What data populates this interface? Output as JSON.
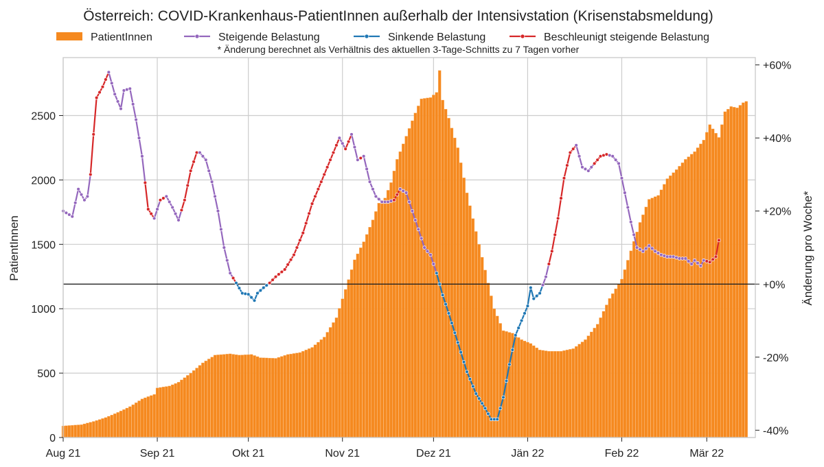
{
  "chart_data": {
    "type": "bar",
    "title": "Österreich: COVID-Krankenhaus-PatientInnen außerhalb der Intensivstation (Krisenstabsmeldung)",
    "note": "* Änderung berechnet als Verhältnis des aktuellen 3-Tage-Schnitts zu 7 Tagen vorher",
    "ylabel_left": "PatientInnen",
    "ylabel_right": "Änderung pro Woche*",
    "ylim_left": [
      0,
      2950
    ],
    "ylim_right": [
      -42,
      62
    ],
    "yticks_left": [
      {
        "value": 0,
        "label": "0"
      },
      {
        "value": 500,
        "label": "500"
      },
      {
        "value": 1000,
        "label": "1000"
      },
      {
        "value": 1500,
        "label": "1500"
      },
      {
        "value": 2000,
        "label": "2000"
      },
      {
        "value": 2500,
        "label": "2500"
      }
    ],
    "yticks_right": [
      {
        "value": -40,
        "label": "-40%"
      },
      {
        "value": -20,
        "label": "-20%"
      },
      {
        "value": 0,
        "label": "+0%"
      },
      {
        "value": 20,
        "label": "+20%"
      },
      {
        "value": 40,
        "label": "+40%"
      },
      {
        "value": 60,
        "label": "+60%"
      }
    ],
    "xticks": [
      {
        "day": 0,
        "label": "Aug 21"
      },
      {
        "day": 31,
        "label": "Sep 21"
      },
      {
        "day": 61,
        "label": "Okt 21"
      },
      {
        "day": 92,
        "label": "Nov 21"
      },
      {
        "day": 122,
        "label": "Dez 21"
      },
      {
        "day": 153,
        "label": "Jän 22"
      },
      {
        "day": 184,
        "label": "Feb 22"
      },
      {
        "day": 212,
        "label": "Mär 22"
      }
    ],
    "x_range_days": [
      0,
      228
    ],
    "grid": true,
    "legend_placement": "top",
    "legend": [
      {
        "key": "bars",
        "label": "PatientInnen",
        "color": "#f5891f",
        "kind": "patch"
      },
      {
        "key": "rising",
        "label": "Steigende Belastung",
        "color": "#9467bd",
        "kind": "line"
      },
      {
        "key": "falling",
        "label": "Sinkende Belastung",
        "color": "#1f77b4",
        "kind": "line"
      },
      {
        "key": "accel",
        "label": "Beschleunigt steigende Belastung",
        "color": "#d62728",
        "kind": "line"
      }
    ],
    "bar_color": "#f5891f",
    "series_colors": {
      "rising": "#9467bd",
      "falling": "#1f77b4",
      "accel": "#d62728"
    },
    "patients_anchors": [
      [
        0,
        90
      ],
      [
        6,
        100
      ],
      [
        10,
        125
      ],
      [
        14,
        155
      ],
      [
        18,
        195
      ],
      [
        22,
        240
      ],
      [
        26,
        300
      ],
      [
        30,
        335
      ],
      [
        31,
        385
      ],
      [
        35,
        400
      ],
      [
        38,
        430
      ],
      [
        42,
        500
      ],
      [
        46,
        580
      ],
      [
        50,
        640
      ],
      [
        55,
        650
      ],
      [
        58,
        640
      ],
      [
        62,
        645
      ],
      [
        65,
        620
      ],
      [
        70,
        615
      ],
      [
        74,
        645
      ],
      [
        78,
        660
      ],
      [
        82,
        700
      ],
      [
        86,
        780
      ],
      [
        90,
        930
      ],
      [
        93,
        1150
      ],
      [
        96,
        1380
      ],
      [
        99,
        1520
      ],
      [
        102,
        1690
      ],
      [
        104,
        1820
      ],
      [
        106,
        1860
      ],
      [
        108,
        1980
      ],
      [
        110,
        2160
      ],
      [
        112,
        2280
      ],
      [
        114,
        2400
      ],
      [
        116,
        2520
      ],
      [
        118,
        2630
      ],
      [
        121,
        2640
      ],
      [
        123,
        2680
      ],
      [
        124,
        2850
      ],
      [
        125,
        2620
      ],
      [
        127,
        2480
      ],
      [
        130,
        2250
      ],
      [
        133,
        1900
      ],
      [
        136,
        1600
      ],
      [
        139,
        1300
      ],
      [
        142,
        1000
      ],
      [
        145,
        830
      ],
      [
        148,
        810
      ],
      [
        151,
        760
      ],
      [
        154,
        730
      ],
      [
        157,
        680
      ],
      [
        160,
        670
      ],
      [
        164,
        670
      ],
      [
        168,
        690
      ],
      [
        172,
        760
      ],
      [
        176,
        880
      ],
      [
        180,
        1080
      ],
      [
        184,
        1230
      ],
      [
        187,
        1450
      ],
      [
        190,
        1670
      ],
      [
        193,
        1850
      ],
      [
        196,
        1880
      ],
      [
        199,
        2010
      ],
      [
        202,
        2080
      ],
      [
        205,
        2160
      ],
      [
        208,
        2220
      ],
      [
        211,
        2310
      ],
      [
        213,
        2430
      ],
      [
        216,
        2330
      ],
      [
        218,
        2530
      ],
      [
        220,
        2570
      ],
      [
        222,
        2560
      ],
      [
        224,
        2600
      ],
      [
        225,
        2610
      ]
    ],
    "change_anchors": [
      [
        0,
        20
      ],
      [
        3,
        18.5
      ],
      [
        5,
        26
      ],
      [
        7,
        23
      ],
      [
        8,
        24
      ],
      [
        9,
        30
      ],
      [
        10,
        41
      ],
      [
        11,
        51
      ],
      [
        13,
        54
      ],
      [
        15,
        58
      ],
      [
        17,
        52
      ],
      [
        19,
        48
      ],
      [
        20,
        53
      ],
      [
        22,
        53.5
      ],
      [
        24,
        45
      ],
      [
        26,
        35
      ],
      [
        28,
        20.5
      ],
      [
        30,
        18
      ],
      [
        32,
        23
      ],
      [
        34,
        24
      ],
      [
        36,
        21
      ],
      [
        38,
        17.5
      ],
      [
        40,
        23
      ],
      [
        42,
        31
      ],
      [
        44,
        36
      ],
      [
        45,
        36
      ],
      [
        47,
        34
      ],
      [
        49,
        28
      ],
      [
        51,
        20
      ],
      [
        53,
        10
      ],
      [
        55,
        3
      ],
      [
        57,
        0.3
      ],
      [
        59,
        -2.5
      ],
      [
        61,
        -2.8
      ],
      [
        63,
        -4.5
      ],
      [
        64,
        -2.5
      ],
      [
        66,
        -1
      ],
      [
        68,
        0.3
      ],
      [
        70,
        2
      ],
      [
        73,
        4
      ],
      [
        76,
        8
      ],
      [
        79,
        14
      ],
      [
        82,
        22
      ],
      [
        85,
        28
      ],
      [
        88,
        34
      ],
      [
        91,
        40
      ],
      [
        93,
        37
      ],
      [
        95,
        41
      ],
      [
        97,
        34
      ],
      [
        99,
        35
      ],
      [
        101,
        28
      ],
      [
        103,
        24
      ],
      [
        105,
        22.5
      ],
      [
        107,
        22.5
      ],
      [
        109,
        23
      ],
      [
        111,
        26
      ],
      [
        113,
        25
      ],
      [
        115,
        20
      ],
      [
        117,
        15
      ],
      [
        119,
        10
      ],
      [
        121,
        8
      ],
      [
        123,
        3
      ],
      [
        125,
        -3
      ],
      [
        127,
        -8
      ],
      [
        130,
        -16
      ],
      [
        133,
        -24
      ],
      [
        136,
        -30
      ],
      [
        139,
        -34
      ],
      [
        141,
        -37
      ],
      [
        143,
        -37
      ],
      [
        145,
        -31
      ],
      [
        147,
        -22
      ],
      [
        149,
        -14
      ],
      [
        151,
        -10
      ],
      [
        153,
        -6
      ],
      [
        154,
        -1
      ],
      [
        155,
        -4
      ],
      [
        157,
        -2.5
      ],
      [
        159,
        2
      ],
      [
        161,
        9
      ],
      [
        163,
        18
      ],
      [
        165,
        29
      ],
      [
        167,
        36
      ],
      [
        169,
        38
      ],
      [
        171,
        32
      ],
      [
        173,
        31
      ],
      [
        175,
        33
      ],
      [
        177,
        35
      ],
      [
        179,
        35.5
      ],
      [
        181,
        35
      ],
      [
        183,
        33
      ],
      [
        185,
        25
      ],
      [
        187,
        17
      ],
      [
        189,
        10
      ],
      [
        191,
        9
      ],
      [
        193,
        10.5
      ],
      [
        195,
        9
      ],
      [
        197,
        8
      ],
      [
        199,
        7.5
      ],
      [
        201,
        7.5
      ],
      [
        203,
        7
      ],
      [
        205,
        7
      ],
      [
        207,
        5.5
      ],
      [
        208,
        6.5
      ],
      [
        210,
        5
      ],
      [
        211,
        6.5
      ],
      [
        213,
        6
      ],
      [
        215,
        7.5
      ],
      [
        216,
        12
      ]
    ],
    "category_segments": [
      {
        "from": 0,
        "to": 9,
        "category": "rising"
      },
      {
        "from": 9,
        "to": 15,
        "category": "accel"
      },
      {
        "from": 15,
        "to": 27,
        "category": "rising"
      },
      {
        "from": 27,
        "to": 30,
        "category": "accel"
      },
      {
        "from": 30,
        "to": 32,
        "category": "rising"
      },
      {
        "from": 32,
        "to": 34,
        "category": "accel"
      },
      {
        "from": 34,
        "to": 39,
        "category": "rising"
      },
      {
        "from": 39,
        "to": 45,
        "category": "accel"
      },
      {
        "from": 45,
        "to": 56,
        "category": "rising"
      },
      {
        "from": 56,
        "to": 57,
        "category": "accel"
      },
      {
        "from": 57,
        "to": 68,
        "category": "falling"
      },
      {
        "from": 68,
        "to": 91,
        "category": "accel"
      },
      {
        "from": 91,
        "to": 93,
        "category": "rising"
      },
      {
        "from": 93,
        "to": 95,
        "category": "accel"
      },
      {
        "from": 95,
        "to": 98,
        "category": "rising"
      },
      {
        "from": 98,
        "to": 99,
        "category": "accel"
      },
      {
        "from": 99,
        "to": 109,
        "category": "rising"
      },
      {
        "from": 109,
        "to": 111,
        "category": "accel"
      },
      {
        "from": 111,
        "to": 123,
        "category": "rising"
      },
      {
        "from": 123,
        "to": 158,
        "category": "falling"
      },
      {
        "from": 158,
        "to": 160,
        "category": "rising"
      },
      {
        "from": 160,
        "to": 169,
        "category": "accel"
      },
      {
        "from": 169,
        "to": 175,
        "category": "rising"
      },
      {
        "from": 175,
        "to": 180,
        "category": "accel"
      },
      {
        "from": 180,
        "to": 212,
        "category": "rising"
      },
      {
        "from": 212,
        "to": 216,
        "category": "accel"
      }
    ]
  }
}
